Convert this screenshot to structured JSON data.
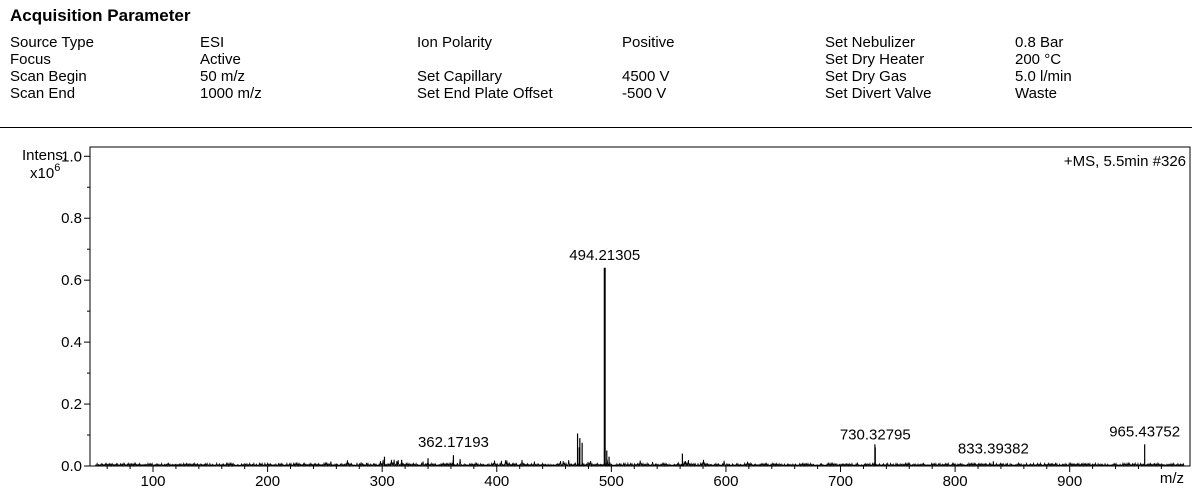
{
  "acquisition": {
    "title": "Acquisition Parameter",
    "columns": [
      [
        {
          "label": "Source Type",
          "value": "ESI"
        },
        {
          "label": "Focus",
          "value": "Active"
        },
        {
          "label": "Scan Begin",
          "value": "50 m/z"
        },
        {
          "label": "Scan End",
          "value": "1000 m/z"
        }
      ],
      [
        {
          "label": "Ion Polarity",
          "value": "Positive"
        },
        {
          "label": "",
          "value": ""
        },
        {
          "label": "Set Capillary",
          "value": "4500 V"
        },
        {
          "label": "Set End Plate Offset",
          "value": "-500 V"
        }
      ],
      [
        {
          "label": "Set Nebulizer",
          "value": "0.8 Bar"
        },
        {
          "label": "Set Dry Heater",
          "value": "200 °C"
        },
        {
          "label": "Set Dry Gas",
          "value": "5.0 l/min"
        },
        {
          "label": "Set Divert Valve",
          "value": "Waste"
        }
      ]
    ]
  },
  "chart_data": {
    "type": "bar",
    "title": "+MS, 5.5min #326",
    "ylabel": "Intens.",
    "ylabel_exponent": "x10",
    "ylabel_power": "6",
    "xlabel": "m/z",
    "xlim": [
      45,
      1005
    ],
    "ylim": [
      0,
      1.03
    ],
    "xticks": [
      100,
      200,
      300,
      400,
      500,
      600,
      700,
      800,
      900
    ],
    "yticks": [
      0.0,
      0.2,
      0.4,
      0.6,
      0.8,
      1.0
    ],
    "ytick_labels": [
      "0.0",
      "0.2",
      "0.4",
      "0.6",
      "0.8",
      "1.0"
    ],
    "peaks": [
      {
        "x": 362.17193,
        "y": 0.035,
        "label": "362.17193"
      },
      {
        "x": 494.21305,
        "y": 0.64,
        "label": "494.21305"
      },
      {
        "x": 730.32795,
        "y": 0.06,
        "label": "730.32795"
      },
      {
        "x": 833.39382,
        "y": 0.015,
        "label": "833.39382"
      },
      {
        "x": 965.43752,
        "y": 0.07,
        "label": "965.43752"
      },
      {
        "x": 470.5,
        "y": 0.105
      },
      {
        "x": 472.5,
        "y": 0.09
      },
      {
        "x": 474.5,
        "y": 0.075
      },
      {
        "x": 472.0,
        "y": 0.06
      },
      {
        "x": 496.0,
        "y": 0.05
      },
      {
        "x": 498.0,
        "y": 0.03
      },
      {
        "x": 562.0,
        "y": 0.04
      },
      {
        "x": 340.0,
        "y": 0.025
      },
      {
        "x": 317.0,
        "y": 0.02
      },
      {
        "x": 302.0,
        "y": 0.03
      },
      {
        "x": 730.0,
        "y": 0.07
      }
    ],
    "grid": false,
    "legend": "none"
  }
}
